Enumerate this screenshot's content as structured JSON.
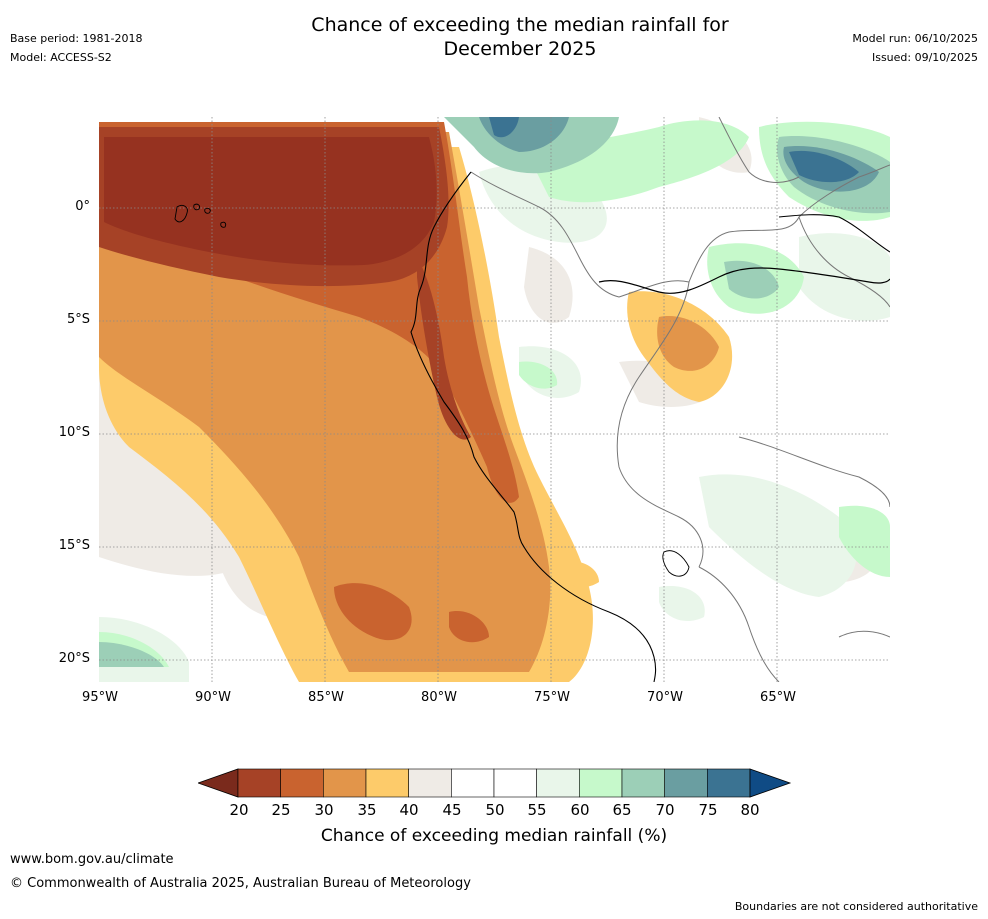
{
  "header": {
    "title_line1": "Chance of exceeding the median rainfall for",
    "title_line2": "December 2025",
    "base_period": "Base period: 1981-2018",
    "model": "Model: ACCESS-S2",
    "model_run": "Model run: 06/10/2025",
    "issued": "Issued: 09/10/2025"
  },
  "map": {
    "lat_labels": [
      "0°",
      "5°S",
      "10°S",
      "15°S",
      "20°S"
    ],
    "lon_labels": [
      "95°W",
      "90°W",
      "85°W",
      "80°W",
      "75°W",
      "70°W",
      "65°W"
    ]
  },
  "colorbar": {
    "tick_labels": [
      "20",
      "25",
      "30",
      "35",
      "40",
      "45",
      "50",
      "55",
      "60",
      "65",
      "70",
      "75",
      "80"
    ],
    "title": "Chance of exceeding median rainfall (%)",
    "under_color": "#7a2a1c",
    "over_color": "#0f4b85",
    "bin_colors": [
      "#a64226",
      "#c9632f",
      "#e2954a",
      "#fdcb6a",
      "#efebe6",
      "#ffffff",
      "#ffffff",
      "#e9f6ea",
      "#c6f9cb",
      "#9ccfb7",
      "#6a9ea1",
      "#3b7392"
    ]
  },
  "footer": {
    "url": "www.bom.gov.au/climate",
    "copyright": "© Commonwealth of Australia 2025, Australian Bureau of Meteorology",
    "disclaimer": "Boundaries are not considered authoritative"
  }
}
